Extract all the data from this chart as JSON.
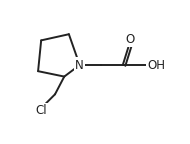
{
  "bg_color": "#ffffff",
  "line_color": "#222222",
  "line_width": 1.4,
  "font_size_atom": 8.5,
  "ring_N": [
    72,
    62
  ],
  "ring_C2": [
    52,
    77
  ],
  "ring_C3": [
    18,
    70
  ],
  "ring_C4": [
    22,
    30
  ],
  "ring_C5": [
    58,
    22
  ],
  "ch2": [
    100,
    62
  ],
  "ca_C": [
    128,
    62
  ],
  "ca_O": [
    138,
    30
  ],
  "ca_OH": [
    158,
    62
  ],
  "ch2cl": [
    40,
    100
  ],
  "cl_label": [
    22,
    118
  ],
  "xmin": 0,
  "xmax": 190,
  "ymin": 0,
  "ymax": 144
}
